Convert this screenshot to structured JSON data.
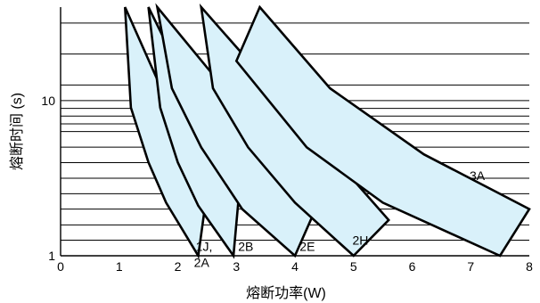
{
  "chart_data": {
    "type": "area",
    "title": "",
    "xlabel": "熔断功率(W)",
    "ylabel": "熔断时间 (s)",
    "xlim": [
      0,
      8
    ],
    "ylim": [
      1,
      40
    ],
    "y_scale": "log",
    "x_ticks": [
      "0",
      "1",
      "2",
      "3",
      "4",
      "5",
      "6",
      "7",
      "8"
    ],
    "y_ticks": [
      {
        "value": 1,
        "label": "1"
      },
      {
        "value": 10,
        "label": "10"
      }
    ],
    "grid_y": [
      1.26,
      1.58,
      2.0,
      2.51,
      3.16,
      3.98,
      5.01,
      6.31,
      7.08,
      7.94,
      8.91,
      10.0,
      12.6,
      19.95,
      31.6
    ],
    "grid": true,
    "series": [
      {
        "name": "1J, 2A",
        "points": [
          [
            1.1,
            40
          ],
          [
            2.5,
            2.6
          ],
          [
            2.35,
            1
          ],
          [
            1.8,
            2.2
          ],
          [
            1.5,
            4
          ],
          [
            1.2,
            9
          ]
        ],
        "label_x": 2.55,
        "label_y": 1.05,
        "label_dx": [
          0,
          2
        ],
        "label_dy": [
          0,
          18
        ]
      },
      {
        "name": "2B",
        "points": [
          [
            1.5,
            40
          ],
          [
            3.05,
            2.6
          ],
          [
            2.95,
            1
          ],
          [
            2.35,
            2.1
          ],
          [
            2.0,
            4
          ],
          [
            1.7,
            9
          ]
        ],
        "label_x": 3.0,
        "label_y": 1.05
      },
      {
        "name": "2E",
        "points": [
          [
            1.65,
            40
          ],
          [
            4.4,
            2.2
          ],
          [
            4.0,
            1
          ],
          [
            3.1,
            2.0
          ],
          [
            2.4,
            5
          ],
          [
            1.9,
            12
          ]
        ],
        "label_x": 4.05,
        "label_y": 1.05
      },
      {
        "name": "2H",
        "points": [
          [
            2.4,
            40
          ],
          [
            5.6,
            1.7
          ],
          [
            5.0,
            1
          ],
          [
            4.0,
            2.2
          ],
          [
            3.2,
            5
          ],
          [
            2.6,
            12
          ]
        ],
        "label_x": 4.95,
        "label_y": 1.15
      },
      {
        "name": "3A",
        "points": [
          [
            3.4,
            40
          ],
          [
            4.6,
            12
          ],
          [
            6.2,
            4.5
          ],
          [
            8.0,
            2.0
          ],
          [
            7.5,
            1
          ],
          [
            5.5,
            2.2
          ],
          [
            4.2,
            5
          ],
          [
            3.0,
            18
          ]
        ],
        "label_x": 6.95,
        "label_y": 3.0
      }
    ]
  }
}
